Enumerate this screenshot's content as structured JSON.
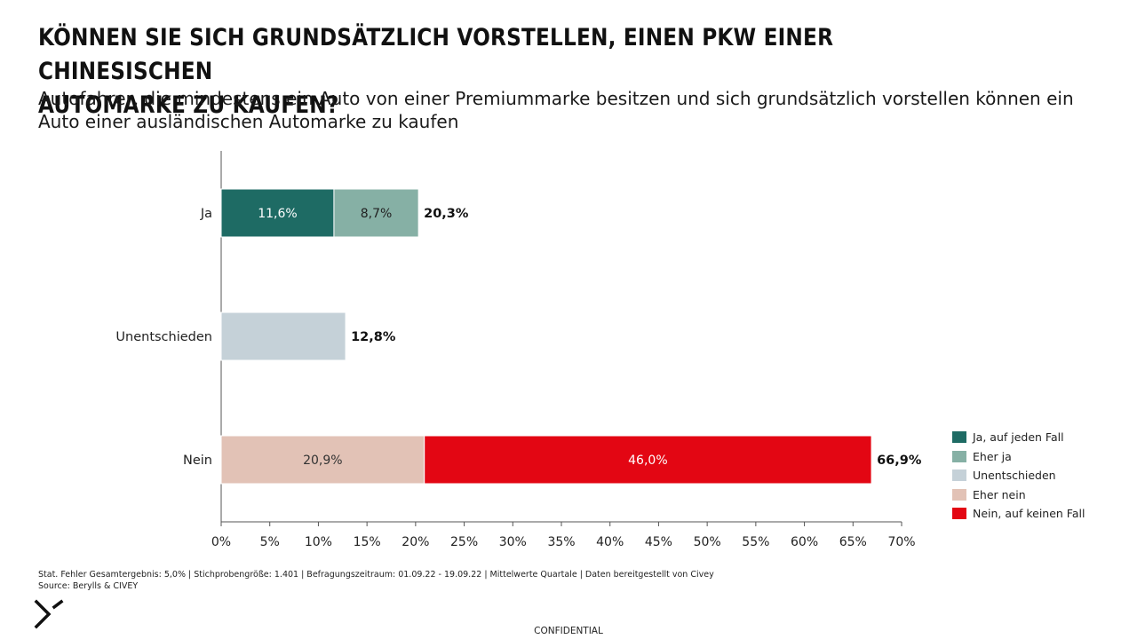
{
  "title": "KÖNNEN SIE SICH GRUNDSÄTZLICH VORSTELLEN, EINEN PKW EINER CHINESISCHEN\nAUTOMARKE ZU KAUFEN?",
  "subtitle": "Autofahrer, die mindestens ein Auto von einer Premiummarke besitzen und sich grundsätzlich vorstellen können ein Auto einer ausländischen Automarke zu kaufen",
  "footnote": {
    "line1": "Stat. Fehler Gesamtergebnis: 5,0% | Stichprobengröße: 1.401 | Befragungszeitraum: 01.09.22 - 19.09.22 | Mittelwerte Quartale | Daten bereitgestellt von Civey",
    "line2": "Source: Berylls & CIVEY"
  },
  "confidential": "CONFIDENTIAL",
  "chart_data": {
    "type": "bar",
    "orientation": "horizontal",
    "stacked": true,
    "categories": [
      "Ja",
      "Unentschieden",
      "Nein"
    ],
    "xlim": [
      0,
      70
    ],
    "x_ticks": [
      "0%",
      "5%",
      "10%",
      "15%",
      "20%",
      "25%",
      "30%",
      "35%",
      "40%",
      "45%",
      "50%",
      "55%",
      "60%",
      "65%",
      "70%"
    ],
    "x_tick_values": [
      0,
      5,
      10,
      15,
      20,
      25,
      30,
      35,
      40,
      45,
      50,
      55,
      60,
      65,
      70
    ],
    "grid": false,
    "legend_position": "right",
    "series": [
      {
        "name": "Ja, auf jeden Fall",
        "color": "#1e6b64",
        "text_color": "#ffffff",
        "values": [
          11.6,
          null,
          null
        ],
        "labels": [
          "11,6%",
          "",
          ""
        ]
      },
      {
        "name": "Eher ja",
        "color": "#86b0a5",
        "text_color": "#222222",
        "values": [
          8.7,
          null,
          null
        ],
        "labels": [
          "8,7%",
          "",
          ""
        ]
      },
      {
        "name": "Unentschieden",
        "color": "#c5d1d8",
        "text_color": "#222222",
        "values": [
          null,
          12.8,
          null
        ],
        "labels": [
          "",
          "",
          ""
        ]
      },
      {
        "name": "Eher nein",
        "color": "#e2c2b6",
        "text_color": "#333333",
        "values": [
          null,
          null,
          20.9
        ],
        "labels": [
          "",
          "",
          "20,9%"
        ]
      },
      {
        "name": "Nein, auf keinen Fall",
        "color": "#e30613",
        "text_color": "#ffffff",
        "values": [
          null,
          null,
          46.0
        ],
        "labels": [
          "",
          "",
          "46,0%"
        ]
      }
    ],
    "totals": [
      20.3,
      12.8,
      66.9
    ],
    "total_labels": [
      "20,3%",
      "12,8%",
      "66,9%"
    ]
  }
}
